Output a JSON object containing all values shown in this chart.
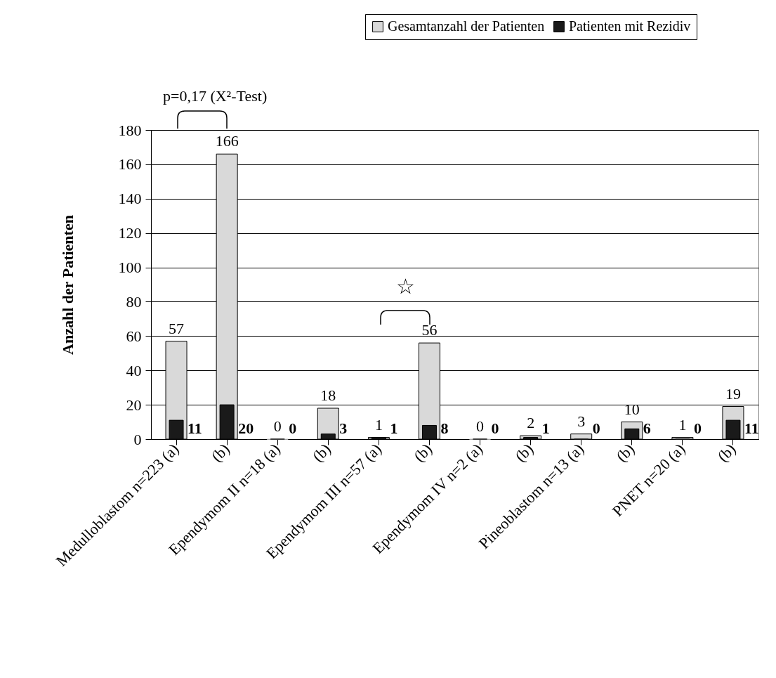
{
  "chart_data": {
    "type": "bar",
    "ylabel": "Anzahl der Patienten",
    "categories": [
      "Medulloblastom n=223 (a)",
      "(b)",
      "Ependymom II n=18 (a)",
      "(b)",
      "Ependymom III n=57 (a)",
      "(b)",
      "Ependymom IV n=2 (a)",
      "(b)",
      "Pineoblastom n=13 (a)",
      "(b)",
      "PNET n=20 (a)",
      "(b)"
    ],
    "series": [
      {
        "name": "Gesamtanzahl der Patienten",
        "color": "#d9d9d9",
        "values": [
          57,
          166,
          0,
          18,
          1,
          56,
          0,
          2,
          3,
          10,
          1,
          19
        ]
      },
      {
        "name": "Patienten mit Rezidiv",
        "color": "#1a1a1a",
        "values": [
          11,
          20,
          0,
          3,
          1,
          8,
          0,
          1,
          0,
          6,
          0,
          11
        ]
      }
    ],
    "ylim": [
      0,
      180
    ],
    "yticks": [
      0,
      20,
      40,
      60,
      80,
      100,
      120,
      140,
      160,
      180
    ],
    "grid": "y",
    "legend": "top right",
    "data_labels": true,
    "annotations": [
      "p=0,17 (X²-Test)",
      "☆"
    ]
  }
}
